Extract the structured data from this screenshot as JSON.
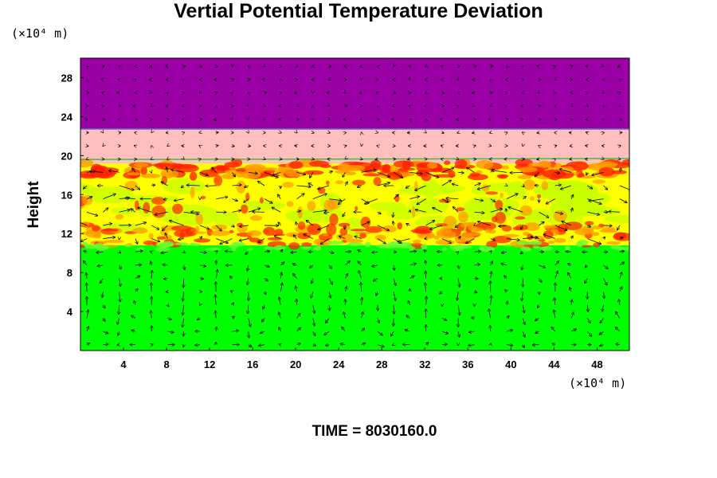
{
  "title": "Vertial Potential Temperature Deviation",
  "time_label": "TIME = 8030160.0",
  "chart_data": {
    "type": "heatmap",
    "title": "Vertial Potential Temperature Deviation",
    "xlabel": "",
    "ylabel": "Height",
    "x_unit": "(×10⁴ m)",
    "y_unit": "(×10⁴ m)",
    "xlim": [
      0,
      51
    ],
    "ylim": [
      0,
      30
    ],
    "x_ticks": [
      4,
      8,
      12,
      16,
      20,
      24,
      28,
      32,
      36,
      40,
      44,
      48
    ],
    "y_ticks": [
      4,
      8,
      12,
      16,
      20,
      24,
      28
    ],
    "grid": false,
    "overlay": "velocity vectors",
    "layers": [
      {
        "y_from": 0,
        "y_to": 10.8,
        "color": "#00ff00"
      },
      {
        "y_from": 10.8,
        "y_to": 19.2,
        "color": "#ffff00"
      },
      {
        "y_from": 19.2,
        "y_to": 22.7,
        "color": "#ffbfbf"
      },
      {
        "y_from": 22.7,
        "y_to": 30,
        "color": "#9b00a6"
      }
    ],
    "colors": {
      "green": "#00ff00",
      "yellow_green": "#c8ff00",
      "yellow": "#ffff00",
      "orange": "#ff9900",
      "red": "#ff2200",
      "pink": "#ffbfbf",
      "purple": "#9b00a6"
    }
  }
}
